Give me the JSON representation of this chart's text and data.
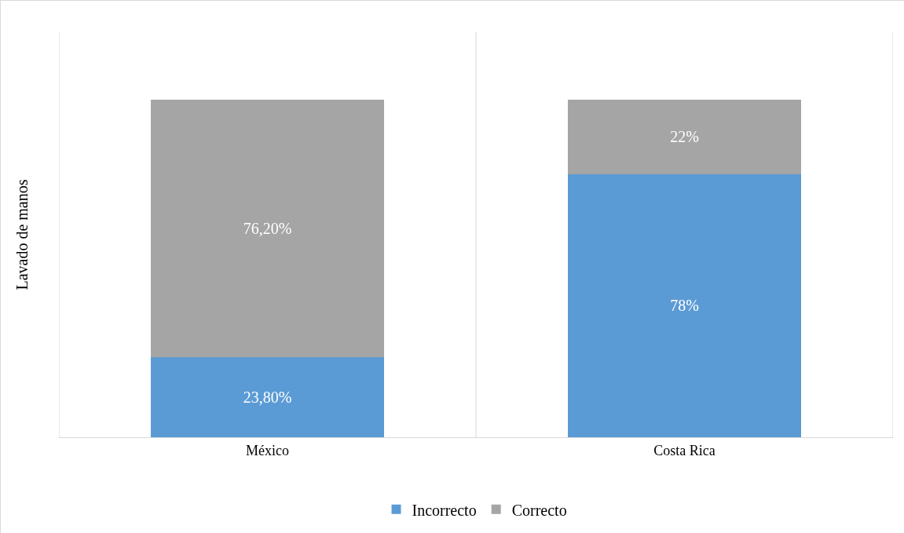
{
  "chart_data": {
    "type": "bar",
    "stacked": true,
    "ylabel": "Lavado de manos",
    "categories": [
      "México",
      "Costa Rica"
    ],
    "series": [
      {
        "name": "Incorrecto",
        "color": "#5b9bd5",
        "values": [
          23.8,
          78
        ],
        "value_labels": [
          "23,80%",
          "78%"
        ]
      },
      {
        "name": "Correcto",
        "color": "#a5a5a5",
        "values": [
          76.2,
          22
        ],
        "value_labels": [
          "76,20%",
          "22%"
        ]
      }
    ],
    "ylim": [
      0,
      120
    ],
    "tick_labels": "x",
    "grid": "x",
    "legend": "bottom"
  }
}
